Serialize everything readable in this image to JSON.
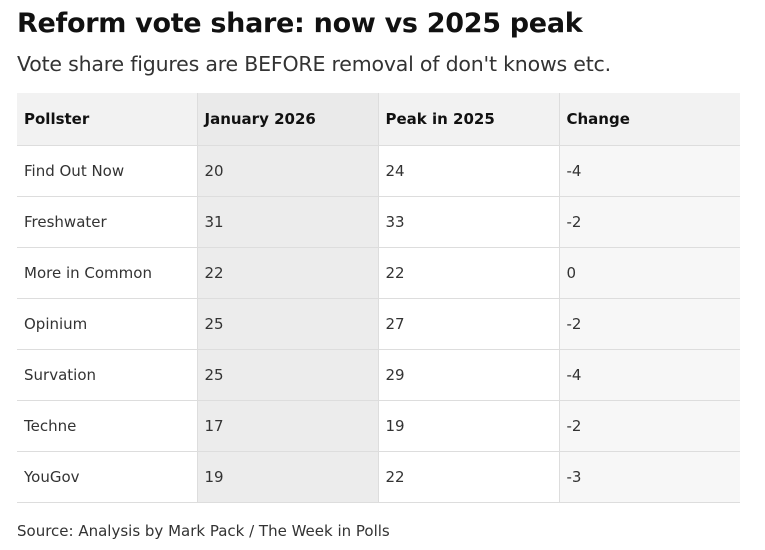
{
  "title": "Reform vote share: now vs 2025 peak",
  "subtitle": "Vote share figures are BEFORE removal of don't knows etc.",
  "source": "Source: Analysis by Mark Pack / The Week in Polls",
  "chart_data": {
    "type": "table",
    "title": "Reform vote share: now vs 2025 peak",
    "subtitle": "Vote share figures are BEFORE removal of don't knows etc.",
    "columns": [
      "Pollster",
      "January 2026",
      "Peak in 2025",
      "Change"
    ],
    "rows": [
      [
        "Find Out Now",
        "20",
        "24",
        "-4"
      ],
      [
        "Freshwater",
        "31",
        "33",
        "-2"
      ],
      [
        "More in Common",
        "22",
        "22",
        "0"
      ],
      [
        "Opinium",
        "25",
        "27",
        "-2"
      ],
      [
        "Survation",
        "25",
        "29",
        "-4"
      ],
      [
        "Techne",
        "17",
        "19",
        "-2"
      ],
      [
        "YouGov",
        "19",
        "22",
        "-3"
      ]
    ]
  }
}
